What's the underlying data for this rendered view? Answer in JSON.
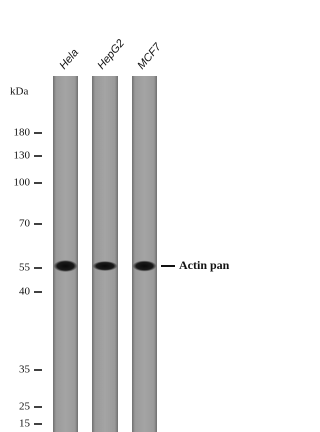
{
  "lanes": [
    "Hela",
    "HepG2",
    "MCF7"
  ],
  "unit": "kDa",
  "markers": [
    180,
    130,
    100,
    70,
    55,
    40,
    35,
    25,
    15
  ],
  "band_label": "Actin pan"
}
